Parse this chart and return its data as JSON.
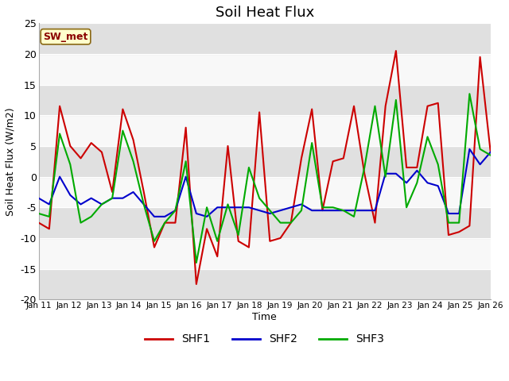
{
  "title": "Soil Heat Flux",
  "ylabel": "Soil Heat Flux (W/m2)",
  "xlabel": "Time",
  "ylim": [
    -20,
    25
  ],
  "annotation_text": "SW_met",
  "annotation_bg": "#ffffcc",
  "annotation_fg": "#8b0000",
  "x_tick_labels": [
    "Jan 11",
    "Jan 12",
    "Jan 13",
    "Jan 14",
    "Jan 15",
    "Jan 16",
    "Jan 17",
    "Jan 18",
    "Jan 19",
    "Jan 20",
    "Jan 21",
    "Jan 22",
    "Jan 23",
    "Jan 24",
    "Jan 25",
    "Jan 26"
  ],
  "shf1_color": "#cc0000",
  "shf2_color": "#0000cc",
  "shf3_color": "#00aa00",
  "line_width": 1.5,
  "shf1": [
    -7.5,
    -8.5,
    11.5,
    5.0,
    3.0,
    5.5,
    4.0,
    -2.5,
    11.0,
    6.0,
    -2.5,
    -11.5,
    -7.5,
    -7.5,
    8.0,
    -17.5,
    -8.5,
    -13.0,
    5.0,
    -10.5,
    -11.5,
    10.5,
    -10.5,
    -10.0,
    -7.5,
    3.0,
    11.0,
    -5.5,
    2.5,
    3.0,
    11.5,
    0.5,
    -7.5,
    11.5,
    20.5,
    1.5,
    1.5,
    11.5,
    12.0,
    -9.5,
    -9.0,
    -8.0,
    19.5,
    4.0
  ],
  "shf2": [
    -3.5,
    -4.5,
    0.0,
    -3.0,
    -4.5,
    -3.5,
    -4.5,
    -3.5,
    -3.5,
    -2.5,
    -4.5,
    -6.5,
    -6.5,
    -5.5,
    0.0,
    -6.0,
    -6.5,
    -5.0,
    -5.0,
    -5.0,
    -5.0,
    -5.5,
    -6.0,
    -5.5,
    -5.0,
    -4.5,
    -5.5,
    -5.5,
    -5.5,
    -5.5,
    -5.5,
    -5.5,
    -5.5,
    0.5,
    0.5,
    -1.0,
    1.0,
    -1.0,
    -1.5,
    -6.0,
    -6.0,
    4.5,
    2.0,
    4.0
  ],
  "shf3": [
    -6.0,
    -6.5,
    7.0,
    2.0,
    -7.5,
    -6.5,
    -4.5,
    -3.5,
    7.5,
    2.5,
    -4.5,
    -10.5,
    -7.5,
    -5.5,
    2.5,
    -14.0,
    -5.0,
    -10.5,
    -4.5,
    -9.5,
    1.5,
    -3.5,
    -5.5,
    -7.5,
    -7.5,
    -5.5,
    5.5,
    -5.0,
    -5.0,
    -5.5,
    -6.5,
    1.5,
    11.5,
    0.0,
    12.5,
    -5.0,
    -1.0,
    6.5,
    2.0,
    -7.5,
    -7.5,
    13.5,
    4.5,
    3.5
  ],
  "bg_stripe_color": "#e0e0e0",
  "bg_white": "#f8f8f8",
  "y_ticks": [
    -20,
    -15,
    -10,
    -5,
    0,
    5,
    10,
    15,
    20,
    25
  ]
}
